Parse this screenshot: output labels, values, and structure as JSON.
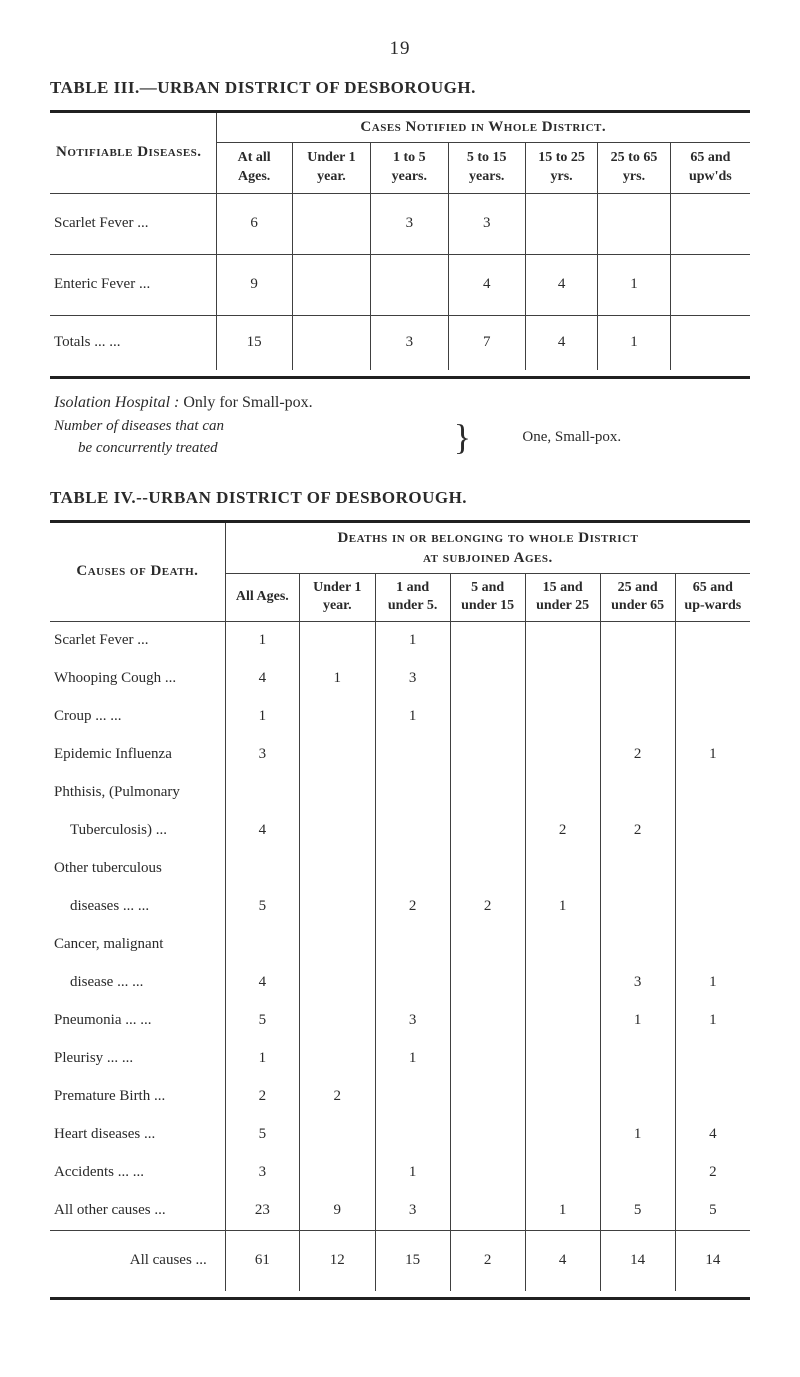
{
  "page_number": "19",
  "table3": {
    "title": "TABLE III.—URBAN DISTRICT OF DESBOROUGH.",
    "group_header": "Cases Notified in Whole District.",
    "stub_header": "Notifiable Diseases.",
    "columns": [
      "At all Ages.",
      "Under 1 year.",
      "1 to 5 years.",
      "5 to 15 years.",
      "15 to 25 yrs.",
      "25 to 65 yrs.",
      "65 and upw'ds"
    ],
    "rows": [
      {
        "label": "Scarlet Fever   ...",
        "cells": [
          "6",
          "",
          "3",
          "3",
          "",
          "",
          ""
        ]
      },
      {
        "label": "Enteric Fever   ...",
        "cells": [
          "9",
          "",
          "",
          "4",
          "4",
          "1",
          ""
        ]
      }
    ],
    "totals": {
      "label": "Totals   ...   ...",
      "cells": [
        "15",
        "",
        "3",
        "7",
        "4",
        "1",
        ""
      ]
    }
  },
  "notes": {
    "line1_ital": "Isolation Hospital :",
    "line1_rest": "  Only for Small-pox.",
    "line2a_ital": "Number of diseases that can",
    "line2b_ital": "be concurrently treated",
    "line2_right": "One, Small-pox."
  },
  "table4": {
    "title": "TABLE IV.--URBAN DISTRICT OF DESBOROUGH.",
    "group_header_l1": "Deaths in or belonging to whole District",
    "group_header_l2": "at subjoined Ages.",
    "stub_header": "Causes of Death.",
    "columns": [
      "All Ages.",
      "Under 1 year.",
      "1 and under 5.",
      "5 and under 15",
      "15 and under 25",
      "25 and under 65",
      "65 and up-wards"
    ],
    "rows": [
      {
        "label": "Scarlet Fever   ...",
        "cells": [
          "1",
          "",
          "1",
          "",
          "",
          "",
          ""
        ]
      },
      {
        "label": "Whooping Cough ...",
        "cells": [
          "4",
          "1",
          "3",
          "",
          "",
          "",
          ""
        ]
      },
      {
        "label": "Croup   ...   ...",
        "cells": [
          "1",
          "",
          "1",
          "",
          "",
          "",
          ""
        ]
      },
      {
        "label": "Epidemic Influenza",
        "cells": [
          "3",
          "",
          "",
          "",
          "",
          "2",
          "1"
        ]
      },
      {
        "label": "Phthisis, (Pulmonary",
        "cells": [
          "",
          "",
          "",
          "",
          "",
          "",
          ""
        ]
      },
      {
        "label": "Tuberculosis)   ...",
        "indent": true,
        "cells": [
          "4",
          "",
          "",
          "",
          "2",
          "2",
          ""
        ]
      },
      {
        "label": "Other tuberculous",
        "cells": [
          "",
          "",
          "",
          "",
          "",
          "",
          ""
        ]
      },
      {
        "label": "diseases ...   ...",
        "indent": true,
        "cells": [
          "5",
          "",
          "2",
          "2",
          "1",
          "",
          ""
        ]
      },
      {
        "label": "Cancer, malignant",
        "cells": [
          "",
          "",
          "",
          "",
          "",
          "",
          ""
        ]
      },
      {
        "label": "disease   ...   ...",
        "indent": true,
        "cells": [
          "4",
          "",
          "",
          "",
          "",
          "3",
          "1"
        ]
      },
      {
        "label": "Pneumonia ...   ...",
        "cells": [
          "5",
          "",
          "3",
          "",
          "",
          "1",
          "1"
        ]
      },
      {
        "label": "Pleurisy   ...   ...",
        "cells": [
          "1",
          "",
          "1",
          "",
          "",
          "",
          ""
        ]
      },
      {
        "label": "Premature Birth ...",
        "cells": [
          "2",
          "2",
          "",
          "",
          "",
          "",
          ""
        ]
      },
      {
        "label": "Heart diseases   ...",
        "cells": [
          "5",
          "",
          "",
          "",
          "",
          "1",
          "4"
        ]
      },
      {
        "label": "Accidents ...   ...",
        "cells": [
          "3",
          "",
          "1",
          "",
          "",
          "",
          "2"
        ]
      },
      {
        "label": "All other causes ...",
        "cells": [
          "23",
          "9",
          "3",
          "",
          "1",
          "5",
          "5"
        ]
      }
    ],
    "totals": {
      "label": "All causes   ...",
      "cells": [
        "61",
        "12",
        "15",
        "2",
        "4",
        "14",
        "14"
      ]
    }
  }
}
